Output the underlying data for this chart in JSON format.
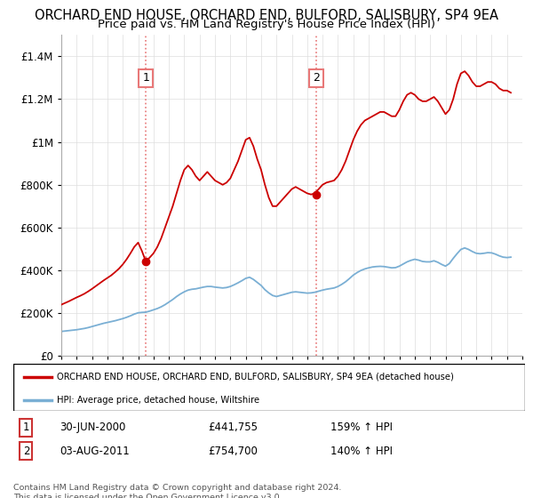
{
  "title": "ORCHARD END HOUSE, ORCHARD END, BULFORD, SALISBURY, SP4 9EA",
  "subtitle": "Price paid vs. HM Land Registry's House Price Index (HPI)",
  "title_fontsize": 10.5,
  "subtitle_fontsize": 9.5,
  "ylim": [
    0,
    1500000
  ],
  "yticks": [
    0,
    200000,
    400000,
    600000,
    800000,
    1000000,
    1200000,
    1400000
  ],
  "ytick_labels": [
    "£0",
    "£200K",
    "£400K",
    "£600K",
    "£800K",
    "£1M",
    "£1.2M",
    "£1.4M"
  ],
  "price_paid_color": "#cc0000",
  "hpi_color": "#7aafd4",
  "marker1_year": 2000.5,
  "marker1_value": 441755,
  "marker1_label": "1",
  "marker1_date": "30-JUN-2000",
  "marker1_price": "£441,755",
  "marker1_hpi": "159% ↑ HPI",
  "marker2_year": 2011.58,
  "marker2_value": 754700,
  "marker2_label": "2",
  "marker2_date": "03-AUG-2011",
  "marker2_price": "£754,700",
  "marker2_hpi": "140% ↑ HPI",
  "vline_color": "#e87878",
  "legend_label1": "ORCHARD END HOUSE, ORCHARD END, BULFORD, SALISBURY, SP4 9EA (detached house)",
  "legend_label2": "HPI: Average price, detached house, Wiltshire",
  "footer": "Contains HM Land Registry data © Crown copyright and database right 2024.\nThis data is licensed under the Open Government Licence v3.0.",
  "price_paid_years": [
    1995.0,
    1995.25,
    1995.5,
    1995.75,
    1996.0,
    1996.25,
    1996.5,
    1996.75,
    1997.0,
    1997.25,
    1997.5,
    1997.75,
    1998.0,
    1998.25,
    1998.5,
    1998.75,
    1999.0,
    1999.25,
    1999.5,
    1999.75,
    2000.0,
    2000.25,
    2000.5,
    2000.75,
    2001.0,
    2001.25,
    2001.5,
    2001.75,
    2002.0,
    2002.25,
    2002.5,
    2002.75,
    2003.0,
    2003.25,
    2003.5,
    2003.75,
    2004.0,
    2004.25,
    2004.5,
    2004.75,
    2005.0,
    2005.25,
    2005.5,
    2005.75,
    2006.0,
    2006.25,
    2006.5,
    2006.75,
    2007.0,
    2007.25,
    2007.5,
    2007.75,
    2008.0,
    2008.25,
    2008.5,
    2008.75,
    2009.0,
    2009.25,
    2009.5,
    2009.75,
    2010.0,
    2010.25,
    2010.5,
    2010.75,
    2011.0,
    2011.25,
    2011.5,
    2011.75,
    2012.0,
    2012.25,
    2012.5,
    2012.75,
    2013.0,
    2013.25,
    2013.5,
    2013.75,
    2014.0,
    2014.25,
    2014.5,
    2014.75,
    2015.0,
    2015.25,
    2015.5,
    2015.75,
    2016.0,
    2016.25,
    2016.5,
    2016.75,
    2017.0,
    2017.25,
    2017.5,
    2017.75,
    2018.0,
    2018.25,
    2018.5,
    2018.75,
    2019.0,
    2019.25,
    2019.5,
    2019.75,
    2020.0,
    2020.25,
    2020.5,
    2020.75,
    2021.0,
    2021.25,
    2021.5,
    2021.75,
    2022.0,
    2022.25,
    2022.5,
    2022.75,
    2023.0,
    2023.25,
    2023.5,
    2023.75,
    2024.0,
    2024.25
  ],
  "price_paid_values": [
    240000,
    248000,
    256000,
    265000,
    274000,
    282000,
    291000,
    302000,
    314000,
    327000,
    340000,
    353000,
    365000,
    377000,
    392000,
    408000,
    428000,
    452000,
    480000,
    510000,
    530000,
    490000,
    441755,
    460000,
    480000,
    510000,
    550000,
    600000,
    650000,
    700000,
    760000,
    820000,
    870000,
    890000,
    870000,
    840000,
    820000,
    840000,
    860000,
    840000,
    820000,
    810000,
    800000,
    810000,
    830000,
    870000,
    910000,
    960000,
    1010000,
    1020000,
    980000,
    920000,
    870000,
    800000,
    740000,
    700000,
    700000,
    720000,
    740000,
    760000,
    780000,
    790000,
    780000,
    770000,
    760000,
    754700,
    760000,
    780000,
    800000,
    810000,
    815000,
    820000,
    840000,
    870000,
    910000,
    960000,
    1010000,
    1050000,
    1080000,
    1100000,
    1110000,
    1120000,
    1130000,
    1140000,
    1140000,
    1130000,
    1120000,
    1120000,
    1150000,
    1190000,
    1220000,
    1230000,
    1220000,
    1200000,
    1190000,
    1190000,
    1200000,
    1210000,
    1190000,
    1160000,
    1130000,
    1150000,
    1200000,
    1270000,
    1320000,
    1330000,
    1310000,
    1280000,
    1260000,
    1260000,
    1270000,
    1280000,
    1280000,
    1270000,
    1250000,
    1240000,
    1240000,
    1230000
  ],
  "hpi_years": [
    1995.0,
    1995.25,
    1995.5,
    1995.75,
    1996.0,
    1996.25,
    1996.5,
    1996.75,
    1997.0,
    1997.25,
    1997.5,
    1997.75,
    1998.0,
    1998.25,
    1998.5,
    1998.75,
    1999.0,
    1999.25,
    1999.5,
    1999.75,
    2000.0,
    2000.25,
    2000.5,
    2000.75,
    2001.0,
    2001.25,
    2001.5,
    2001.75,
    2002.0,
    2002.25,
    2002.5,
    2002.75,
    2003.0,
    2003.25,
    2003.5,
    2003.75,
    2004.0,
    2004.25,
    2004.5,
    2004.75,
    2005.0,
    2005.25,
    2005.5,
    2005.75,
    2006.0,
    2006.25,
    2006.5,
    2006.75,
    2007.0,
    2007.25,
    2007.5,
    2007.75,
    2008.0,
    2008.25,
    2008.5,
    2008.75,
    2009.0,
    2009.25,
    2009.5,
    2009.75,
    2010.0,
    2010.25,
    2010.5,
    2010.75,
    2011.0,
    2011.25,
    2011.5,
    2011.75,
    2012.0,
    2012.25,
    2012.5,
    2012.75,
    2013.0,
    2013.25,
    2013.5,
    2013.75,
    2014.0,
    2014.25,
    2014.5,
    2014.75,
    2015.0,
    2015.25,
    2015.5,
    2015.75,
    2016.0,
    2016.25,
    2016.5,
    2016.75,
    2017.0,
    2017.25,
    2017.5,
    2017.75,
    2018.0,
    2018.25,
    2018.5,
    2018.75,
    2019.0,
    2019.25,
    2019.5,
    2019.75,
    2020.0,
    2020.25,
    2020.5,
    2020.75,
    2021.0,
    2021.25,
    2021.5,
    2021.75,
    2022.0,
    2022.25,
    2022.5,
    2022.75,
    2023.0,
    2023.25,
    2023.5,
    2023.75,
    2024.0,
    2024.25
  ],
  "hpi_values": [
    115000,
    117000,
    119000,
    121000,
    123000,
    126000,
    129000,
    133000,
    138000,
    143000,
    148000,
    153000,
    157000,
    161000,
    165000,
    170000,
    175000,
    181000,
    188000,
    196000,
    202000,
    204000,
    205000,
    210000,
    216000,
    222000,
    230000,
    240000,
    252000,
    264000,
    278000,
    290000,
    300000,
    308000,
    312000,
    314000,
    318000,
    322000,
    325000,
    325000,
    322000,
    320000,
    318000,
    320000,
    325000,
    333000,
    342000,
    352000,
    363000,
    368000,
    358000,
    344000,
    330000,
    310000,
    295000,
    283000,
    278000,
    283000,
    288000,
    293000,
    298000,
    300000,
    298000,
    296000,
    294000,
    295000,
    298000,
    303000,
    308000,
    312000,
    315000,
    318000,
    325000,
    335000,
    347000,
    362000,
    378000,
    390000,
    400000,
    407000,
    412000,
    416000,
    418000,
    419000,
    418000,
    415000,
    412000,
    413000,
    420000,
    430000,
    440000,
    447000,
    452000,
    448000,
    442000,
    440000,
    440000,
    445000,
    438000,
    428000,
    420000,
    432000,
    456000,
    478000,
    498000,
    505000,
    498000,
    488000,
    480000,
    478000,
    480000,
    483000,
    482000,
    476000,
    468000,
    462000,
    460000,
    462000
  ]
}
